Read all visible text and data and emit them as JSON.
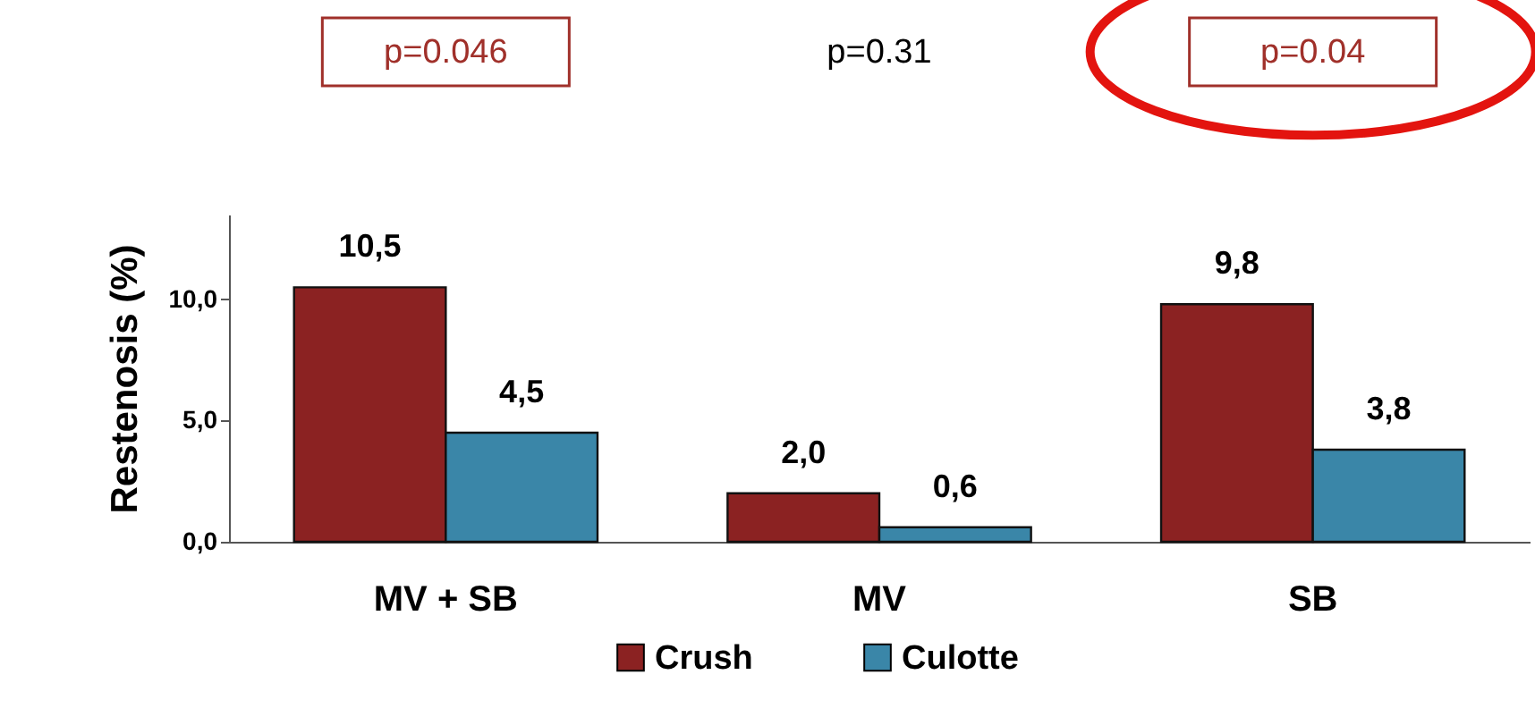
{
  "chart_data": {
    "type": "bar",
    "ylabel": "Restenosis (%)",
    "categories": [
      "MV + SB",
      "MV",
      "SB"
    ],
    "series": [
      {
        "name": "Crush",
        "color": "#8b2222",
        "values": [
          10.5,
          2.0,
          9.8
        ],
        "value_labels": [
          "10,5",
          "2,0",
          "9,8"
        ]
      },
      {
        "name": "Culotte",
        "color": "#3a86a8",
        "values": [
          4.5,
          0.6,
          3.8
        ],
        "value_labels": [
          "4,5",
          "0,6",
          "3,8"
        ]
      }
    ],
    "ylim": [
      0,
      13.5
    ],
    "yticks": [
      {
        "value": 0,
        "label": "0,0"
      },
      {
        "value": 5,
        "label": "5,0"
      },
      {
        "value": 10,
        "label": "10,0"
      }
    ],
    "annotations": [
      "p=0.046",
      "p=0.31",
      "p=0.04"
    ],
    "legend": "bottom",
    "grid": false
  }
}
